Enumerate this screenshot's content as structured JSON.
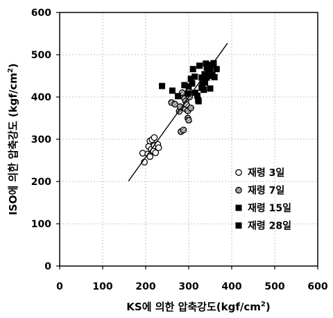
{
  "chart_data": {
    "type": "scatter",
    "xlabel": {
      "main": "KS에 의한 압축강도(kgf/cm",
      "sup": "2",
      "tail": ")"
    },
    "ylabel": {
      "main": "ISO에 의한 압축강도 (kgf/cm",
      "sup": "2",
      "tail": ")"
    },
    "xlim": [
      0,
      600
    ],
    "ylim": [
      0,
      600
    ],
    "x_ticks": [
      "0",
      "100",
      "200",
      "300",
      "400",
      "500",
      "600"
    ],
    "y_ticks": [
      "0",
      "100",
      "200",
      "300",
      "400",
      "500",
      "600"
    ],
    "grid": true,
    "legend_position": "right",
    "series": [
      {
        "name": "재령 3일",
        "marker": "open-circle",
        "points": [
          [
            193,
            267
          ],
          [
            197,
            246
          ],
          [
            205,
            265
          ],
          [
            207,
            283
          ],
          [
            210,
            259
          ],
          [
            210,
            296
          ],
          [
            213,
            276
          ],
          [
            215,
            299
          ],
          [
            218,
            272
          ],
          [
            220,
            285
          ],
          [
            220,
            304
          ],
          [
            223,
            268
          ],
          [
            228,
            288
          ],
          [
            230,
            280
          ]
        ]
      },
      {
        "name": "재령 7일",
        "marker": "hatched-circle",
        "points": [
          [
            260,
            387
          ],
          [
            268,
            383
          ],
          [
            278,
            366
          ],
          [
            280,
            377
          ],
          [
            282,
            318
          ],
          [
            285,
            410
          ],
          [
            288,
            322
          ],
          [
            290,
            397
          ],
          [
            292,
            372
          ],
          [
            293,
            390
          ],
          [
            295,
            382
          ],
          [
            298,
            350
          ],
          [
            298,
            367
          ],
          [
            300,
            345
          ],
          [
            300,
            413
          ],
          [
            302,
            400
          ],
          [
            305,
            374
          ]
        ]
      },
      {
        "name": "재령 15일",
        "marker": "filled-square",
        "points": [
          [
            305,
            443
          ],
          [
            310,
            466
          ],
          [
            314,
            448
          ],
          [
            320,
            403
          ],
          [
            323,
            390
          ],
          [
            325,
            474
          ],
          [
            330,
            446
          ],
          [
            332,
            431
          ],
          [
            335,
            417
          ],
          [
            337,
            454
          ],
          [
            340,
            479
          ],
          [
            342,
            446
          ],
          [
            345,
            462
          ],
          [
            348,
            450
          ],
          [
            350,
            420
          ],
          [
            352,
            476
          ]
        ]
      },
      {
        "name": "재령 28일",
        "marker": "filled-square",
        "points": [
          [
            238,
            426
          ],
          [
            262,
            415
          ],
          [
            275,
            402
          ],
          [
            290,
            428
          ],
          [
            298,
            408
          ],
          [
            300,
            425
          ],
          [
            308,
            432
          ],
          [
            315,
            410
          ],
          [
            322,
            393
          ],
          [
            330,
            422
          ],
          [
            338,
            434
          ],
          [
            340,
            452
          ],
          [
            342,
            470
          ],
          [
            350,
            463
          ],
          [
            355,
            452
          ],
          [
            358,
            480
          ],
          [
            360,
            447
          ],
          [
            365,
            466
          ]
        ]
      }
    ],
    "regression_line": {
      "x": [
        160,
        390
      ],
      "y": [
        201,
        527
      ]
    }
  }
}
